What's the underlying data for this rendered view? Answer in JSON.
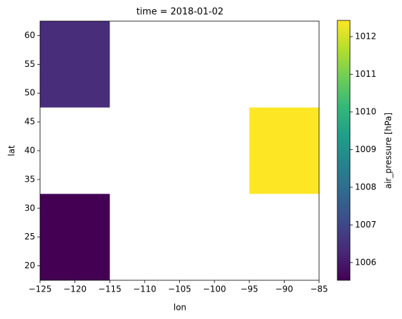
{
  "chart_data": {
    "type": "heatmap",
    "title": "time = 2018-01-02",
    "x_label": "lon",
    "y_label": "lat",
    "x": [
      -120,
      -110,
      -100,
      -90
    ],
    "y": [
      25,
      40,
      55
    ],
    "z": [
      [
        1005.53,
        null,
        null,
        null
      ],
      [
        null,
        null,
        null,
        1012.43
      ],
      [
        1006.4,
        null,
        null,
        null
      ]
    ],
    "xlim": [
      -125,
      -85
    ],
    "ylim": [
      17.5,
      62.5
    ],
    "xticks": [
      {
        "value": -125,
        "label": "−125"
      },
      {
        "value": -120,
        "label": "−120"
      },
      {
        "value": -115,
        "label": "−115"
      },
      {
        "value": -110,
        "label": "−110"
      },
      {
        "value": -105,
        "label": "−105"
      },
      {
        "value": -100,
        "label": "−100"
      },
      {
        "value": -95,
        "label": "−95"
      },
      {
        "value": -90,
        "label": "−90"
      },
      {
        "value": -85,
        "label": "−85"
      }
    ],
    "yticks": [
      20,
      25,
      30,
      35,
      40,
      45,
      50,
      55,
      60
    ],
    "colormap": "viridis",
    "clim": [
      1005.53,
      1012.43
    ],
    "cticks": [
      1006,
      1007,
      1008,
      1009,
      1010,
      1011,
      1012
    ],
    "colorbar_label": "air_pressure [hPa]"
  }
}
